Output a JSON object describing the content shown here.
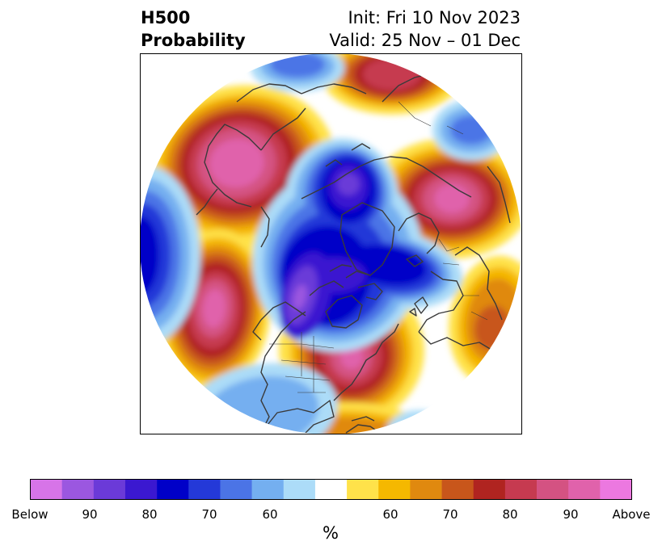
{
  "title": {
    "left_line1": "H500",
    "left_line2": "Probability",
    "right_line1": "Init: Fri 10 Nov 2023",
    "right_line2": "Valid: 25 Nov – 01 Dec"
  },
  "colorbar": {
    "colors": [
      "#d774e8",
      "#9b57e0",
      "#6b3ad8",
      "#3b18d0",
      "#0000c8",
      "#2439d8",
      "#4b74e6",
      "#74aff0",
      "#acdcf8",
      "#ffffff",
      "#ffe24a",
      "#f5b800",
      "#e0890f",
      "#c8561b",
      "#b02420",
      "#c63a50",
      "#d45282",
      "#e062ab",
      "#ec78e0"
    ],
    "ticks": [
      "Below",
      "90",
      "80",
      "70",
      "60",
      "60",
      "70",
      "80",
      "90",
      "Above"
    ],
    "units": "%"
  },
  "map": {
    "below_colors": {
      "c60": "#acdcf8",
      "c65": "#74aff0",
      "c70": "#4b74e6",
      "c75": "#2439d8",
      "c80": "#0000c8",
      "c85": "#3b18d0",
      "c90": "#6b3ad8",
      "c95": "#9b57e0"
    },
    "above_colors": {
      "c60": "#ffe24a",
      "c65": "#f5b800",
      "c70": "#e0890f",
      "c75": "#c8561b",
      "c80": "#b02420",
      "c85": "#c63a50",
      "c90": "#d45282",
      "c95": "#e062ab",
      "c100": "#ec78e0"
    },
    "coast_color": "#3a3a3a"
  }
}
